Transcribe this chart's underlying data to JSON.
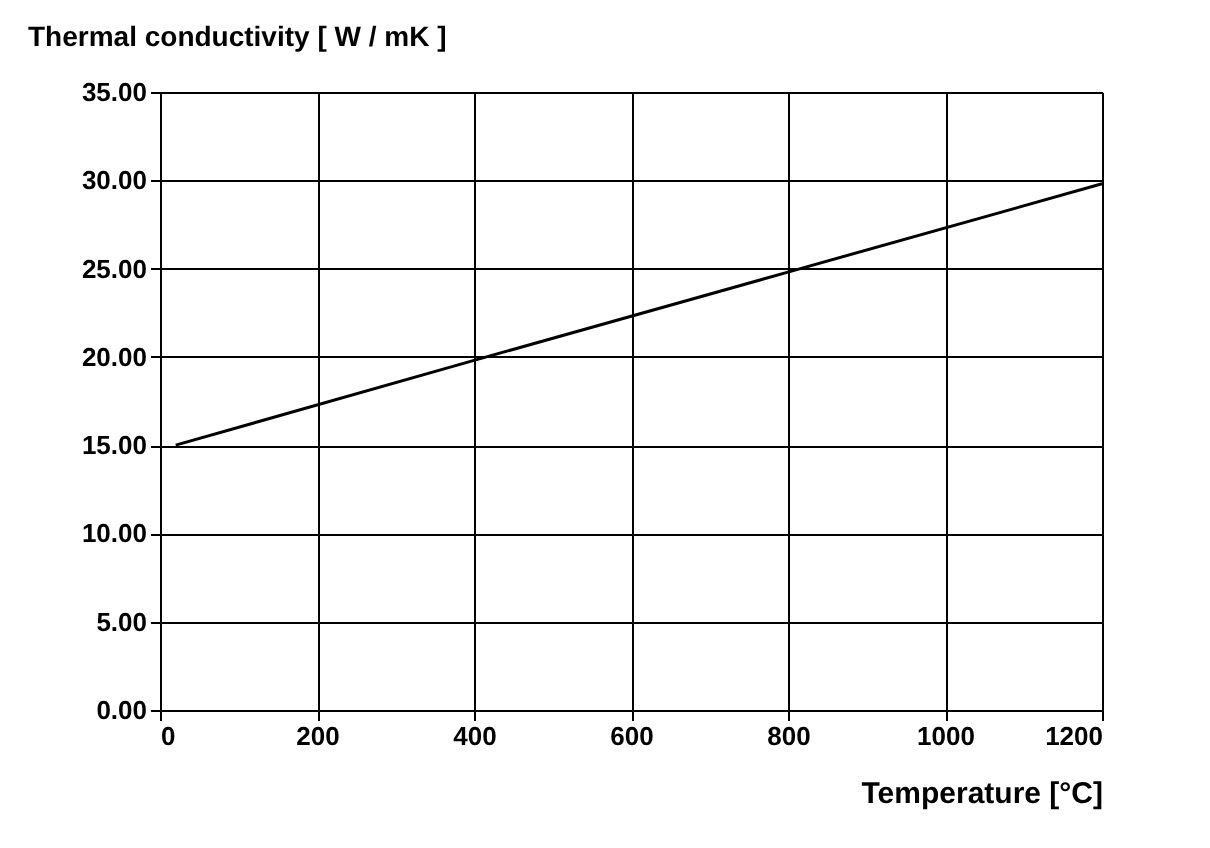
{
  "chart_data": {
    "type": "line",
    "ylabel": "Thermal conductivity  [ W / mK ]",
    "xlabel": "Temperature [°C]",
    "x": [
      20,
      400,
      800,
      1200
    ],
    "series": [
      {
        "color": "#000000",
        "values": [
          15.0,
          19.8,
          24.8,
          29.8
        ]
      }
    ],
    "xlim": [
      0,
      1200
    ],
    "xticks": [
      0,
      200,
      400,
      600,
      800,
      1000,
      1200
    ],
    "ylim": [
      0,
      35
    ],
    "yticks": [
      {
        "value": 0,
        "label": "0.00"
      },
      {
        "value": 5,
        "label": "5.00"
      },
      {
        "value": 10,
        "label": "10.00"
      },
      {
        "value": 15,
        "label": "15.00"
      },
      {
        "value": 20,
        "label": "20.00"
      },
      {
        "value": 25,
        "label": "25.00"
      },
      {
        "value": 30,
        "label": "30.00"
      },
      {
        "value": 35,
        "label": "35.00"
      }
    ],
    "grid": true,
    "marker": "none",
    "line_style": "solid"
  }
}
